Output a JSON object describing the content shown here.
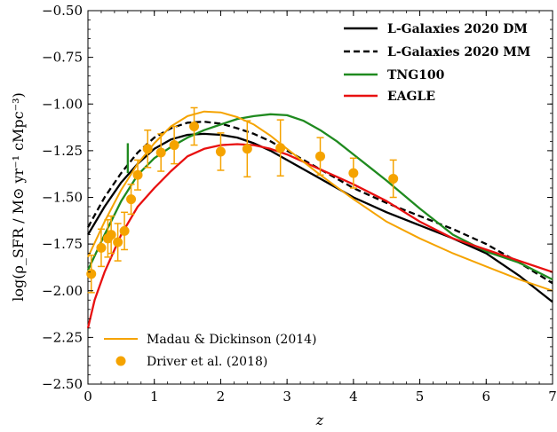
{
  "chart_data": {
    "type": "line",
    "xlabel": "z",
    "ylabel": "log(ρ_SFR / M⊙ yr⁻¹ cMpc⁻³)",
    "xlim": [
      0,
      7
    ],
    "ylim": [
      -2.5,
      -0.5
    ],
    "x_ticks": [
      0,
      1,
      2,
      3,
      4,
      5,
      6,
      7
    ],
    "y_ticks": [
      -2.5,
      -2.25,
      -2.0,
      -1.75,
      -1.5,
      -1.25,
      -1.0,
      -0.75,
      -0.5
    ],
    "x_tick_labels": [
      "0",
      "1",
      "2",
      "3",
      "4",
      "5",
      "6",
      "7"
    ],
    "y_tick_labels": [
      "−2.50",
      "−2.25",
      "−2.00",
      "−1.75",
      "−1.50",
      "−1.25",
      "−1.00",
      "−0.75",
      "−0.50"
    ],
    "series": [
      {
        "name": "L-Galaxies 2020 DM",
        "color": "#000000",
        "style": "solid",
        "x": [
          0.0,
          0.25,
          0.5,
          0.75,
          1.0,
          1.25,
          1.5,
          1.75,
          2.0,
          2.25,
          2.5,
          2.75,
          3.0,
          3.5,
          4.0,
          4.5,
          5.0,
          5.5,
          6.0,
          6.5,
          7.0
        ],
        "y": [
          -1.7,
          -1.55,
          -1.42,
          -1.32,
          -1.24,
          -1.19,
          -1.165,
          -1.16,
          -1.165,
          -1.18,
          -1.21,
          -1.25,
          -1.3,
          -1.4,
          -1.5,
          -1.58,
          -1.65,
          -1.72,
          -1.8,
          -1.92,
          -2.06
        ]
      },
      {
        "name": "L-Galaxies 2020 MM",
        "color": "#000000",
        "style": "dashed",
        "x": [
          0.0,
          0.25,
          0.5,
          0.75,
          1.0,
          1.25,
          1.5,
          1.75,
          2.0,
          2.25,
          2.5,
          2.75,
          3.0,
          3.5,
          4.0,
          4.5,
          5.0,
          5.5,
          6.0,
          6.5,
          7.0
        ],
        "y": [
          -1.66,
          -1.5,
          -1.37,
          -1.26,
          -1.18,
          -1.13,
          -1.1,
          -1.095,
          -1.105,
          -1.13,
          -1.16,
          -1.2,
          -1.25,
          -1.35,
          -1.45,
          -1.53,
          -1.6,
          -1.67,
          -1.75,
          -1.85,
          -1.96
        ]
      },
      {
        "name": "TNG100",
        "color": "#1f8a1f",
        "style": "solid",
        "x": [
          0.0,
          0.25,
          0.5,
          0.75,
          1.0,
          1.25,
          1.5,
          1.75,
          2.0,
          2.25,
          2.5,
          2.75,
          3.0,
          3.25,
          3.5,
          3.75,
          4.0,
          4.25,
          4.5,
          5.0,
          5.5,
          6.0,
          6.5,
          7.0
        ],
        "y": [
          -1.89,
          -1.7,
          -1.52,
          -1.38,
          -1.29,
          -1.23,
          -1.18,
          -1.14,
          -1.11,
          -1.08,
          -1.065,
          -1.055,
          -1.06,
          -1.09,
          -1.14,
          -1.2,
          -1.27,
          -1.34,
          -1.41,
          -1.56,
          -1.7,
          -1.79,
          -1.85,
          -1.94
        ]
      },
      {
        "name": "EAGLE",
        "color": "#e81010",
        "style": "solid",
        "x": [
          0.0,
          0.1,
          0.25,
          0.5,
          0.75,
          1.0,
          1.25,
          1.5,
          1.75,
          2.0,
          2.25,
          2.5,
          2.75,
          3.0,
          3.25,
          3.5,
          3.75,
          4.0,
          4.5,
          5.0,
          5.5,
          6.0,
          6.5,
          7.0
        ],
        "y": [
          -2.2,
          -2.05,
          -1.9,
          -1.7,
          -1.55,
          -1.45,
          -1.36,
          -1.28,
          -1.24,
          -1.22,
          -1.215,
          -1.22,
          -1.24,
          -1.27,
          -1.31,
          -1.35,
          -1.39,
          -1.43,
          -1.52,
          -1.63,
          -1.72,
          -1.78,
          -1.84,
          -1.9
        ]
      },
      {
        "name": "Madau & Dickinson (2014)",
        "color": "#f5a300",
        "style": "solid",
        "x": [
          0.0,
          0.25,
          0.5,
          0.75,
          1.0,
          1.25,
          1.5,
          1.75,
          2.0,
          2.25,
          2.5,
          2.75,
          3.0,
          3.5,
          4.0,
          4.5,
          5.0,
          5.5,
          6.0,
          6.5,
          7.0
        ],
        "y": [
          -1.82,
          -1.63,
          -1.46,
          -1.32,
          -1.21,
          -1.12,
          -1.065,
          -1.04,
          -1.045,
          -1.07,
          -1.11,
          -1.17,
          -1.24,
          -1.38,
          -1.51,
          -1.63,
          -1.72,
          -1.8,
          -1.87,
          -1.94,
          -2.0
        ]
      }
    ],
    "points": {
      "name": "Driver et al. (2018)",
      "color": "#f5a300",
      "x": [
        0.05,
        0.2,
        0.3,
        0.35,
        0.45,
        0.55,
        0.65,
        0.75,
        0.9,
        1.1,
        1.3,
        1.6,
        2.0,
        2.4,
        2.9,
        3.5,
        4.0,
        4.6
      ],
      "y": [
        -1.91,
        -1.77,
        -1.72,
        -1.7,
        -1.74,
        -1.68,
        -1.51,
        -1.38,
        -1.24,
        -1.26,
        -1.22,
        -1.12,
        -1.255,
        -1.24,
        -1.235,
        -1.28,
        -1.37,
        -1.4
      ],
      "err_lo": [
        0.1,
        0.1,
        0.1,
        0.1,
        0.1,
        0.1,
        0.08,
        0.08,
        0.1,
        0.1,
        0.1,
        0.1,
        0.1,
        0.15,
        0.15,
        0.1,
        0.08,
        0.1
      ],
      "err_hi": [
        0.1,
        0.1,
        0.1,
        0.1,
        0.1,
        0.1,
        0.08,
        0.08,
        0.1,
        0.1,
        0.1,
        0.1,
        0.1,
        0.15,
        0.15,
        0.1,
        0.08,
        0.1
      ]
    },
    "tng_spike": {
      "x": 0.6,
      "y_from": -1.37,
      "y_to": -1.21
    },
    "legend_top_right": [
      "L-Galaxies 2020 DM",
      "L-Galaxies 2020 MM",
      "TNG100",
      "EAGLE"
    ],
    "legend_bottom_left": [
      "Madau & Dickinson (2014)",
      "Driver et al. (2018)"
    ],
    "grid": false
  }
}
